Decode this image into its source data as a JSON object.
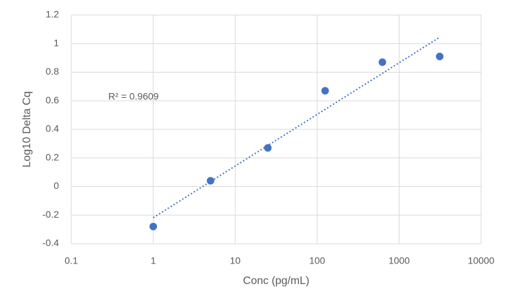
{
  "chart_data": {
    "type": "scatter",
    "x_label": "Conc (pg/mL)",
    "y_label": "Log10 Delta Cq",
    "annotation": "R² = 0.9609",
    "x": [
      1,
      5,
      25,
      125,
      625,
      3125
    ],
    "values": [
      -0.28,
      0.04,
      0.27,
      0.67,
      0.87,
      0.91
    ],
    "color": "#4472c4",
    "xscale": "log",
    "xlim": [
      0.1,
      10000
    ],
    "xticks": [
      0.1,
      1,
      10,
      100,
      1000,
      10000
    ],
    "ylim": [
      -0.4,
      1.2
    ],
    "yticks": [
      -0.4,
      -0.2,
      0,
      0.2,
      0.4,
      0.6,
      0.8,
      1,
      1.2
    ],
    "grid": true,
    "trendline": "linear"
  }
}
